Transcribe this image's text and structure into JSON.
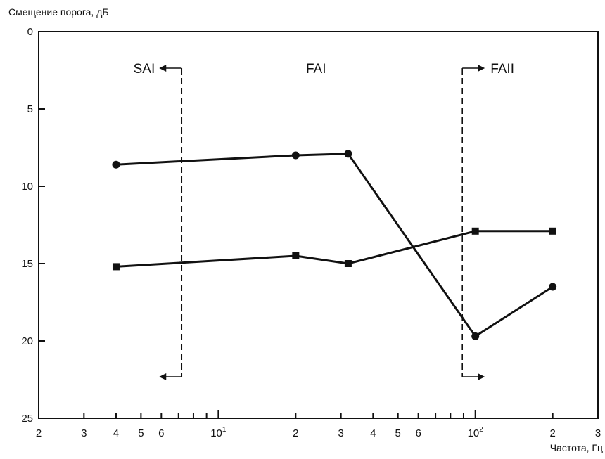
{
  "chart_data": {
    "type": "line",
    "ylabel": "Смещение порога, дБ",
    "xlabel": "Частота, Гц",
    "x_scale": "log",
    "xlim": [
      2,
      300
    ],
    "ylim": [
      0,
      25
    ],
    "y_inverted": true,
    "grid": false,
    "legend": "none",
    "y_ticks": [
      0,
      5,
      10,
      15,
      20,
      25
    ],
    "x_ticks": [
      {
        "value": 2,
        "label": "2"
      },
      {
        "value": 3,
        "label": "3"
      },
      {
        "value": 4,
        "label": "4"
      },
      {
        "value": 5,
        "label": "5"
      },
      {
        "value": 6,
        "label": "6"
      },
      {
        "value": 10,
        "label": "10",
        "exponent": "1"
      },
      {
        "value": 20,
        "label": "2"
      },
      {
        "value": 30,
        "label": "3"
      },
      {
        "value": 40,
        "label": "4"
      },
      {
        "value": 50,
        "label": "5"
      },
      {
        "value": 60,
        "label": "6"
      },
      {
        "value": 100,
        "label": "10",
        "exponent": "2"
      },
      {
        "value": 200,
        "label": "2"
      },
      {
        "value": 300,
        "label": "3"
      }
    ],
    "series": [
      {
        "marker": "circle",
        "x": [
          4,
          20,
          32,
          100,
          200
        ],
        "values": [
          8.6,
          8.0,
          7.9,
          19.7,
          16.5
        ]
      },
      {
        "marker": "square",
        "x": [
          4,
          20,
          32,
          100,
          200
        ],
        "values": [
          15.2,
          14.5,
          15.0,
          12.9,
          12.9
        ]
      }
    ],
    "annotations": [
      {
        "text": "SAI",
        "boundary_x": 7.2,
        "arrow": "left",
        "label_side": "left"
      },
      {
        "text": "FAI",
        "label_x": 24
      },
      {
        "text": "FAII",
        "boundary_x": 89,
        "arrow": "right",
        "label_side": "right"
      }
    ],
    "colors": {
      "ink": "#111111",
      "background": "#ffffff"
    }
  }
}
